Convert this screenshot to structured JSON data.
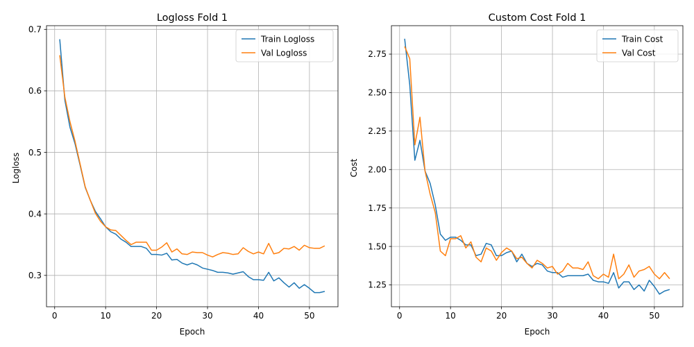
{
  "colors": {
    "train": "#1f77b4",
    "val": "#ff7f0e",
    "grid": "#b0b0b0",
    "axis": "#000000"
  },
  "chart_data": [
    {
      "type": "line",
      "title": "Logloss Fold 1",
      "xlabel": "Epoch",
      "ylabel": "Logloss",
      "xlim": [
        -1.6,
        55.6
      ],
      "ylim": [
        0.249,
        0.706
      ],
      "xticks": [
        0,
        10,
        20,
        30,
        40,
        50
      ],
      "xtick_labels": [
        "0",
        "10",
        "20",
        "30",
        "40",
        "50"
      ],
      "yticks": [
        0.3,
        0.4,
        0.5,
        0.6,
        0.7
      ],
      "ytick_labels": [
        "0.3",
        "0.4",
        "0.5",
        "0.6",
        "0.7"
      ],
      "grid": true,
      "legend_position": "top-right",
      "x": [
        1,
        2,
        3,
        4,
        5,
        6,
        7,
        8,
        9,
        10,
        11,
        12,
        13,
        14,
        15,
        16,
        17,
        18,
        19,
        20,
        21,
        22,
        23,
        24,
        25,
        26,
        27,
        28,
        29,
        30,
        31,
        32,
        33,
        34,
        35,
        36,
        37,
        38,
        39,
        40,
        41,
        42,
        43,
        44,
        45,
        46,
        47,
        48,
        49,
        50,
        51,
        52,
        53
      ],
      "series": [
        {
          "name": "Train Logloss",
          "color_key": "train",
          "values": [
            0.684,
            0.585,
            0.541,
            0.514,
            0.479,
            0.443,
            0.422,
            0.404,
            0.392,
            0.379,
            0.371,
            0.367,
            0.359,
            0.354,
            0.347,
            0.347,
            0.347,
            0.344,
            0.334,
            0.334,
            0.333,
            0.336,
            0.325,
            0.326,
            0.32,
            0.317,
            0.32,
            0.317,
            0.312,
            0.31,
            0.308,
            0.305,
            0.305,
            0.304,
            0.302,
            0.304,
            0.306,
            0.298,
            0.293,
            0.293,
            0.292,
            0.305,
            0.291,
            0.296,
            0.288,
            0.281,
            0.288,
            0.279,
            0.285,
            0.279,
            0.272,
            0.272,
            0.274
          ]
        },
        {
          "name": "Val Logloss",
          "color_key": "val",
          "values": [
            0.658,
            0.59,
            0.55,
            0.518,
            0.481,
            0.444,
            0.422,
            0.401,
            0.388,
            0.379,
            0.374,
            0.373,
            0.365,
            0.357,
            0.35,
            0.354,
            0.354,
            0.354,
            0.341,
            0.341,
            0.346,
            0.353,
            0.338,
            0.343,
            0.335,
            0.334,
            0.338,
            0.337,
            0.337,
            0.333,
            0.33,
            0.334,
            0.337,
            0.336,
            0.334,
            0.335,
            0.345,
            0.339,
            0.335,
            0.338,
            0.335,
            0.352,
            0.335,
            0.337,
            0.344,
            0.343,
            0.347,
            0.341,
            0.349,
            0.345,
            0.344,
            0.344,
            0.348
          ]
        }
      ]
    },
    {
      "type": "line",
      "title": "Custom Cost Fold 1",
      "xlabel": "Epoch",
      "ylabel": "Cost",
      "xlim": [
        -1.6,
        55.6
      ],
      "ylim": [
        1.108,
        2.935
      ],
      "xticks": [
        0,
        10,
        20,
        30,
        40,
        50
      ],
      "xtick_labels": [
        "0",
        "10",
        "20",
        "30",
        "40",
        "50"
      ],
      "yticks": [
        1.25,
        1.5,
        1.75,
        2.0,
        2.25,
        2.5,
        2.75
      ],
      "ytick_labels": [
        "1.25",
        "1.50",
        "1.75",
        "2.00",
        "2.25",
        "2.50",
        "2.75"
      ],
      "grid": true,
      "legend_position": "top-right",
      "x": [
        1,
        2,
        3,
        4,
        5,
        6,
        7,
        8,
        9,
        10,
        11,
        12,
        13,
        14,
        15,
        16,
        17,
        18,
        19,
        20,
        21,
        22,
        23,
        24,
        25,
        26,
        27,
        28,
        29,
        30,
        31,
        32,
        33,
        34,
        35,
        36,
        37,
        38,
        39,
        40,
        41,
        42,
        43,
        44,
        45,
        46,
        47,
        48,
        49,
        50,
        51,
        52,
        53
      ],
      "series": [
        {
          "name": "Train Cost",
          "color_key": "train",
          "values": [
            2.85,
            2.55,
            2.06,
            2.19,
            1.99,
            1.91,
            1.77,
            1.58,
            1.54,
            1.56,
            1.56,
            1.54,
            1.51,
            1.51,
            1.44,
            1.45,
            1.52,
            1.51,
            1.44,
            1.44,
            1.46,
            1.47,
            1.4,
            1.45,
            1.39,
            1.37,
            1.39,
            1.38,
            1.34,
            1.33,
            1.33,
            1.3,
            1.31,
            1.31,
            1.31,
            1.31,
            1.32,
            1.28,
            1.27,
            1.27,
            1.26,
            1.33,
            1.23,
            1.27,
            1.27,
            1.22,
            1.25,
            1.21,
            1.28,
            1.24,
            1.19,
            1.21,
            1.22
          ]
        },
        {
          "name": "Val Cost",
          "color_key": "val",
          "values": [
            2.8,
            2.72,
            2.16,
            2.34,
            1.99,
            1.84,
            1.72,
            1.47,
            1.44,
            1.55,
            1.55,
            1.57,
            1.49,
            1.53,
            1.43,
            1.4,
            1.49,
            1.47,
            1.41,
            1.46,
            1.49,
            1.47,
            1.42,
            1.43,
            1.39,
            1.36,
            1.41,
            1.39,
            1.36,
            1.37,
            1.32,
            1.34,
            1.39,
            1.36,
            1.36,
            1.35,
            1.4,
            1.31,
            1.29,
            1.32,
            1.3,
            1.45,
            1.29,
            1.32,
            1.38,
            1.3,
            1.34,
            1.35,
            1.37,
            1.32,
            1.29,
            1.33,
            1.29
          ]
        }
      ]
    }
  ]
}
